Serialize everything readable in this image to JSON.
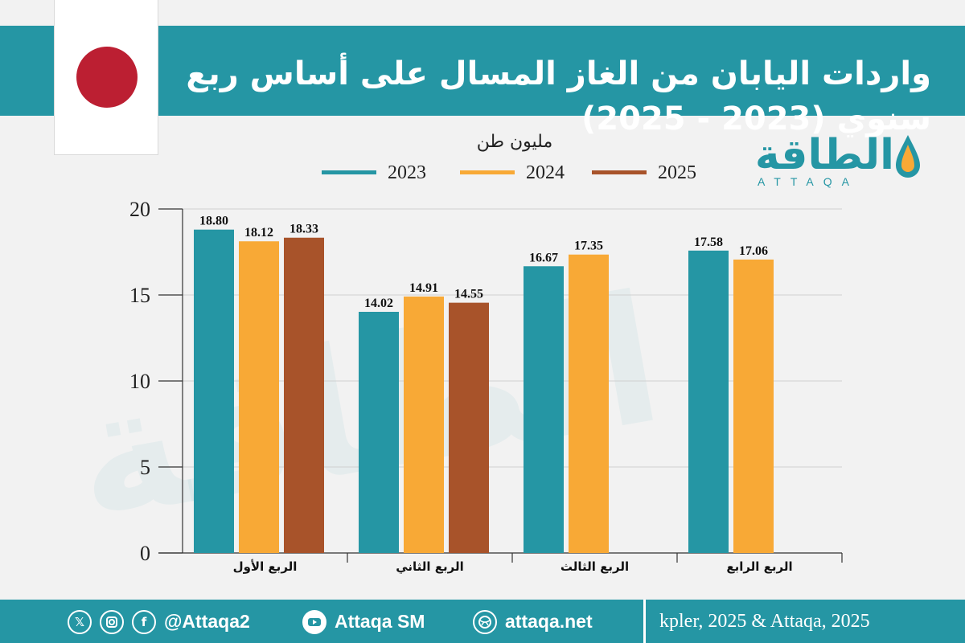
{
  "header": {
    "title": "واردات اليابان من الغاز المسال على أساس ربع سنوي (2023 - 2025)"
  },
  "brand": {
    "name": "الطاقة",
    "sub": "ATTAQA"
  },
  "footer": {
    "source": "kpler, 2025 & Attaqa, 2025",
    "handle": "@Attaqa2",
    "youtube": "Attaqa SM",
    "website": "attaqa.net",
    "icons": [
      "x-icon",
      "instagram-icon",
      "facebook-icon",
      "youtube-icon",
      "globe-icon"
    ]
  },
  "colors": {
    "accent": "#2596a4",
    "series_2023": "#2596a4",
    "series_2024": "#f8a936",
    "series_2025": "#a8532a",
    "flag_disc": "#bc1f32"
  },
  "chart_data": {
    "type": "bar",
    "ylabel": "مليون طن",
    "categories": [
      "الربع الأول",
      "الربع الثاني",
      "الربع الثالث",
      "الربع الرابع"
    ],
    "series": [
      {
        "name": "2023",
        "values": [
          18.8,
          14.02,
          16.67,
          17.58
        ]
      },
      {
        "name": "2024",
        "values": [
          18.12,
          14.91,
          17.35,
          17.06
        ]
      },
      {
        "name": "2025",
        "values": [
          18.33,
          14.55,
          null,
          null
        ]
      }
    ],
    "value_labels": [
      [
        "18.80",
        "14.02",
        "16.67",
        "17.58"
      ],
      [
        "18.12",
        "14.91",
        "17.35",
        "17.06"
      ],
      [
        "18.33",
        "14.55",
        "",
        ""
      ]
    ],
    "ylim": [
      0,
      20
    ],
    "yticks": [
      "0",
      "5",
      "10",
      "15",
      "20"
    ],
    "grid": true,
    "legend_position": "top"
  }
}
